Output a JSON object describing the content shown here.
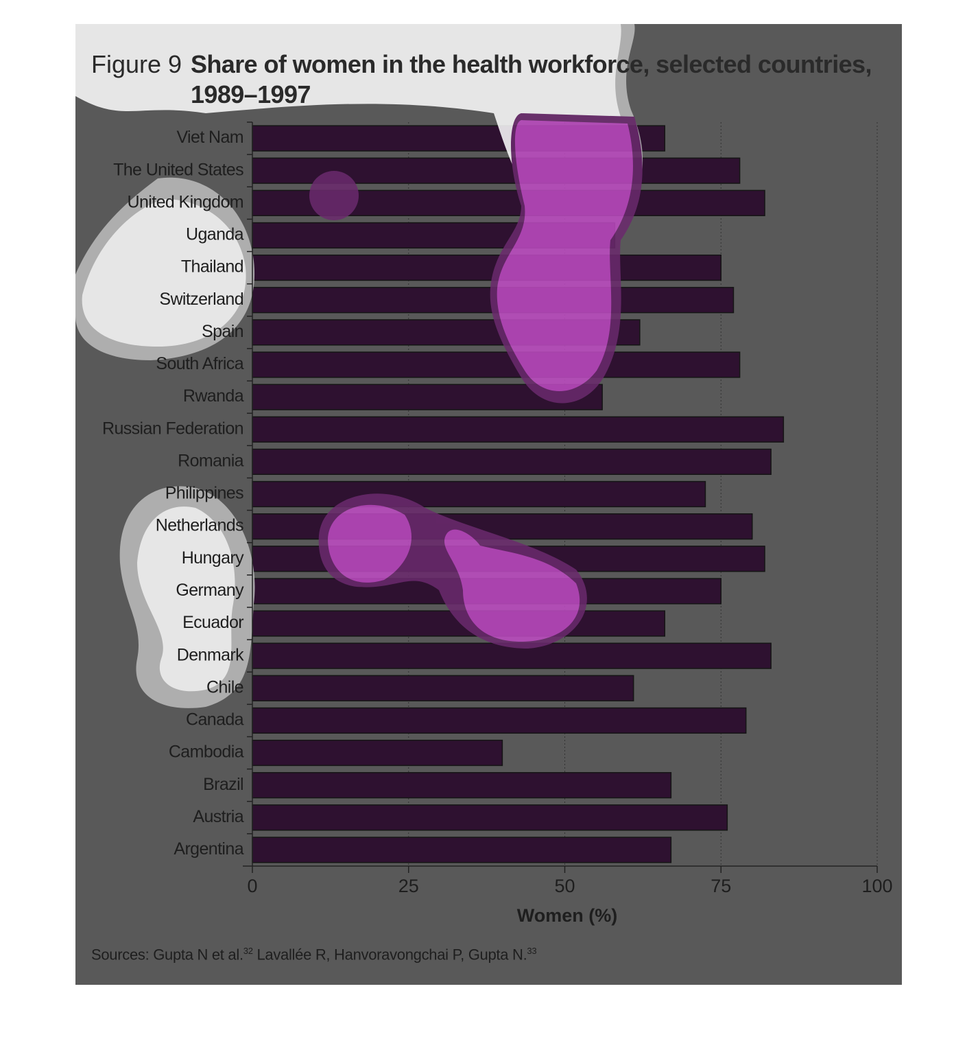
{
  "figure_label": "Figure 9",
  "chart_data": {
    "type": "barh",
    "title": "Share of women in the health workforce, selected countries, 1989–1997",
    "categories": [
      "Viet Nam",
      "The United States",
      "United Kingdom",
      "Uganda",
      "Thailand",
      "Switzerland",
      "Spain",
      "South Africa",
      "Rwanda",
      "Russian Federation",
      "Romania",
      "Philippines",
      "Netherlands",
      "Hungary",
      "Germany",
      "Ecuador",
      "Denmark",
      "Chile",
      "Canada",
      "Cambodia",
      "Brazil",
      "Austria",
      "Argentina"
    ],
    "values": [
      66,
      78,
      82,
      58,
      75,
      77,
      62,
      78,
      56,
      85,
      83,
      72.5,
      80,
      82,
      75,
      66,
      83,
      61,
      79,
      40,
      67,
      76,
      67
    ],
    "color": "#2e1130",
    "x_label": "Women (%)",
    "xlim": [
      0,
      100
    ],
    "xticks": [
      0,
      25,
      50,
      75,
      100
    ],
    "grid": true
  },
  "source": [
    "Sources: Gupta N et al.",
    "32",
    " Lavallée R, Hanvoravongchai P, Gupta N.",
    "33"
  ]
}
